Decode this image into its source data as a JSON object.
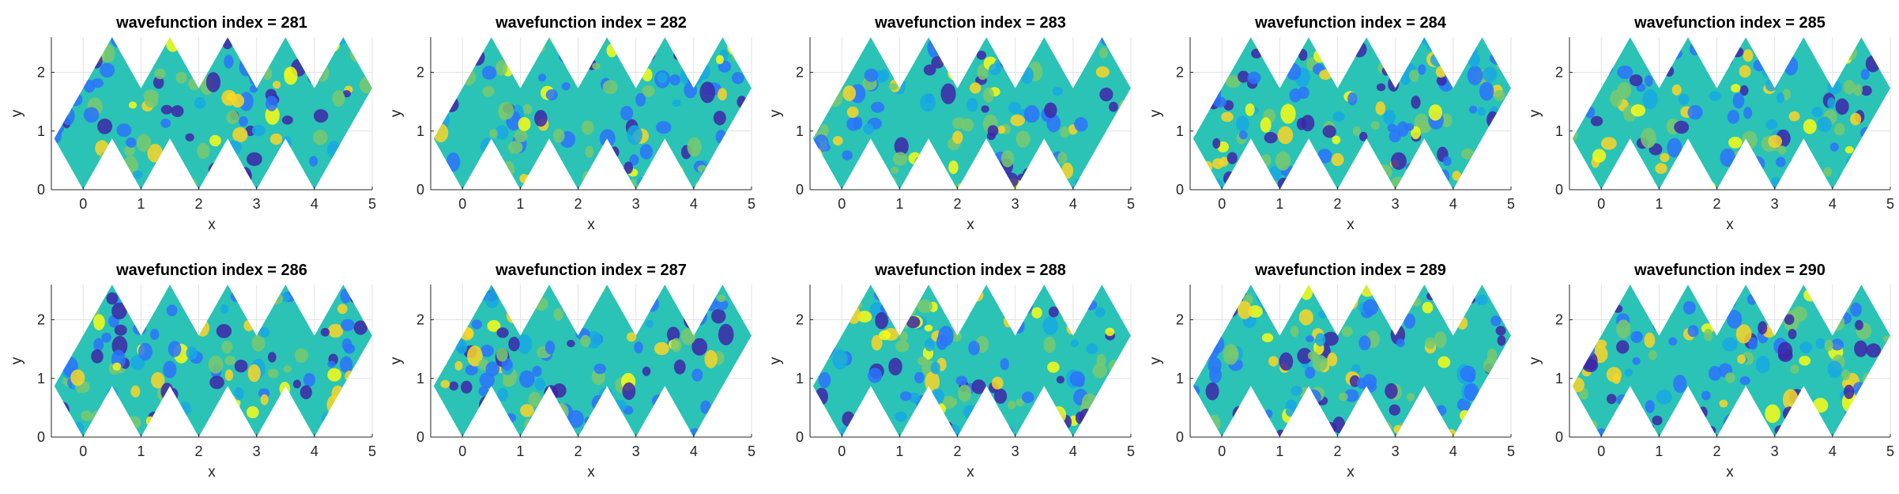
{
  "chart_data": {
    "type": "heatmap",
    "grid": true,
    "colormap": [
      "#3e26a8",
      "#2c73fa",
      "#17a8e3",
      "#2ac3b6",
      "#79c96f",
      "#d2c13e",
      "#fbd526",
      "#f9fb15"
    ],
    "xlim": [
      -0.55,
      5.0
    ],
    "ylim": [
      0,
      2.6
    ],
    "xticks": [
      0,
      1,
      2,
      3,
      4,
      5
    ],
    "yticks": [
      0,
      1,
      2
    ],
    "xlabel": "x",
    "ylabel": "y",
    "panels": [
      {
        "title": "wavefunction index = 281",
        "index": 281
      },
      {
        "title": "wavefunction index = 282",
        "index": 282
      },
      {
        "title": "wavefunction index = 283",
        "index": 283
      },
      {
        "title": "wavefunction index = 284",
        "index": 284
      },
      {
        "title": "wavefunction index = 285",
        "index": 285
      },
      {
        "title": "wavefunction index = 286",
        "index": 286
      },
      {
        "title": "wavefunction index = 287",
        "index": 287
      },
      {
        "title": "wavefunction index = 288",
        "index": 288
      },
      {
        "title": "wavefunction index = 289",
        "index": 289
      },
      {
        "title": "wavefunction index = 290",
        "index": 290
      }
    ]
  }
}
